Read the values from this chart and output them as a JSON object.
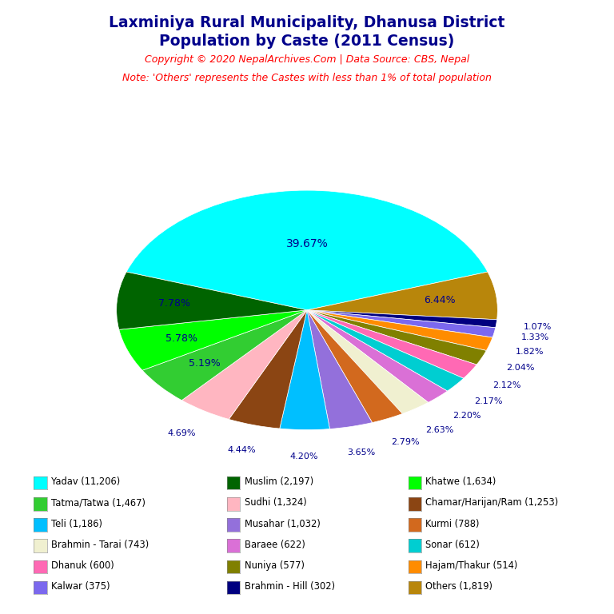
{
  "title_line1": "Laxminiya Rural Municipality, Dhanusa District",
  "title_line2": "Population by Caste (2011 Census)",
  "copyright_text": "Copyright © 2020 NepalArchives.Com | Data Source: CBS, Nepal",
  "note_text": "Note: 'Others' represents the Castes with less than 1% of total population",
  "slices": [
    {
      "label": "Yadav (11,206)",
      "value": 11206,
      "color": "#00FFFF",
      "pct": "39.67%"
    },
    {
      "label": "Others (1,819)",
      "value": 1819,
      "color": "#B8860B",
      "pct": "6.44%"
    },
    {
      "label": "Brahmin - Hill (302)",
      "value": 302,
      "color": "#000080",
      "pct": "1.07%"
    },
    {
      "label": "Kalwar (375)",
      "value": 375,
      "color": "#7B68EE",
      "pct": "1.33%"
    },
    {
      "label": "Hajam/Thakur (514)",
      "value": 514,
      "color": "#FF8C00",
      "pct": "1.82%"
    },
    {
      "label": "Nuniya (577)",
      "value": 577,
      "color": "#808000",
      "pct": "2.04%"
    },
    {
      "label": "Dhanuk (600)",
      "value": 600,
      "color": "#FF69B4",
      "pct": "2.12%"
    },
    {
      "label": "Sonar (612)",
      "value": 612,
      "color": "#00CED1",
      "pct": "2.17%"
    },
    {
      "label": "Baraee (622)",
      "value": 622,
      "color": "#DA70D6",
      "pct": "2.20%"
    },
    {
      "label": "Brahmin - Tarai (743)",
      "value": 743,
      "color": "#F0F0D0",
      "pct": "2.63%"
    },
    {
      "label": "Kurmi (788)",
      "value": 788,
      "color": "#D2691E",
      "pct": "2.79%"
    },
    {
      "label": "Musahar (1,032)",
      "value": 1032,
      "color": "#9370DB",
      "pct": "3.65%"
    },
    {
      "label": "Teli (1,186)",
      "value": 1186,
      "color": "#00BFFF",
      "pct": "4.20%"
    },
    {
      "label": "Chamar/Harijan/Ram (1,253)",
      "value": 1253,
      "color": "#8B4513",
      "pct": "4.44%"
    },
    {
      "label": "Sudhi (1,324)",
      "value": 1324,
      "color": "#FFB6C1",
      "pct": "4.69%"
    },
    {
      "label": "Tatma/Tatwa (1,467)",
      "value": 1467,
      "color": "#32CD32",
      "pct": "5.19%"
    },
    {
      "label": "Khatwe (1,634)",
      "value": 1634,
      "color": "#00FF00",
      "pct": "5.78%"
    },
    {
      "label": "Muslim (2,197)",
      "value": 2197,
      "color": "#006400",
      "pct": "7.78%"
    }
  ],
  "legend_col1": [
    {
      "label": "Yadav (11,206)",
      "color": "#00FFFF"
    },
    {
      "label": "Tatma/Tatwa (1,467)",
      "color": "#32CD32"
    },
    {
      "label": "Teli (1,186)",
      "color": "#00BFFF"
    },
    {
      "label": "Brahmin - Tarai (743)",
      "color": "#F0F0D0"
    },
    {
      "label": "Dhanuk (600)",
      "color": "#FF69B4"
    },
    {
      "label": "Kalwar (375)",
      "color": "#7B68EE"
    }
  ],
  "legend_col2": [
    {
      "label": "Muslim (2,197)",
      "color": "#006400"
    },
    {
      "label": "Sudhi (1,324)",
      "color": "#FFB6C1"
    },
    {
      "label": "Musahar (1,032)",
      "color": "#9370DB"
    },
    {
      "label": "Baraee (622)",
      "color": "#DA70D6"
    },
    {
      "label": "Nuniya (577)",
      "color": "#808000"
    },
    {
      "label": "Brahmin - Hill (302)",
      "color": "#000080"
    }
  ],
  "legend_col3": [
    {
      "label": "Khatwe (1,634)",
      "color": "#00FF00"
    },
    {
      "label": "Chamar/Harijan/Ram (1,253)",
      "color": "#8B4513"
    },
    {
      "label": "Kurmi (788)",
      "color": "#D2691E"
    },
    {
      "label": "Sonar (612)",
      "color": "#00CED1"
    },
    {
      "label": "Hajam/Thakur (514)",
      "color": "#FF8C00"
    },
    {
      "label": "Others (1,819)",
      "color": "#B8860B"
    }
  ],
  "title_color": "#00008B",
  "copyright_color": "#FF0000",
  "note_color": "#FF0000",
  "label_color": "#00008B",
  "background_color": "#FFFFFF"
}
